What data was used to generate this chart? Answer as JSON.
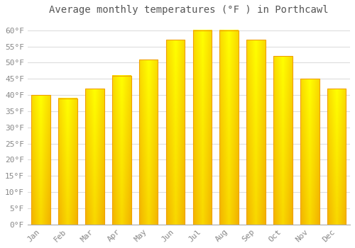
{
  "title": "Average monthly temperatures (°F ) in Porthcawl",
  "months": [
    "Jan",
    "Feb",
    "Mar",
    "Apr",
    "May",
    "Jun",
    "Jul",
    "Aug",
    "Sep",
    "Oct",
    "Nov",
    "Dec"
  ],
  "values": [
    40,
    39,
    42,
    46,
    51,
    57,
    60,
    60,
    57,
    52,
    45,
    42
  ],
  "bar_color_center": "#FFD060",
  "bar_color_edge": "#F0A000",
  "background_color": "#FFFFFF",
  "plot_bg_color": "#FFFFFF",
  "ylim": [
    0,
    63
  ],
  "yticks": [
    0,
    5,
    10,
    15,
    20,
    25,
    30,
    35,
    40,
    45,
    50,
    55,
    60
  ],
  "ytick_labels": [
    "0°F",
    "5°F",
    "10°F",
    "15°F",
    "20°F",
    "25°F",
    "30°F",
    "35°F",
    "40°F",
    "45°F",
    "50°F",
    "55°F",
    "60°F"
  ],
  "title_fontsize": 10,
  "tick_fontsize": 8,
  "grid_color": "#DDDDDD",
  "font_family": "monospace",
  "bar_width": 0.7
}
